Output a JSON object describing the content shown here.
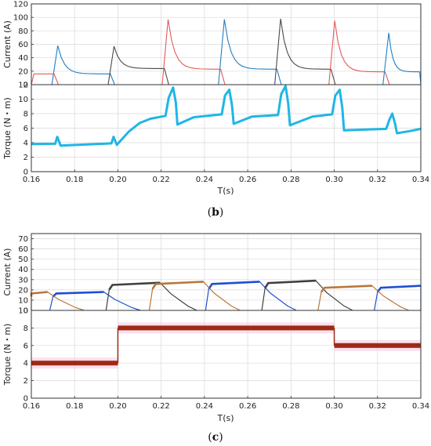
{
  "chart_data": [
    {
      "id": "b",
      "type": "line",
      "caption": "b",
      "xlabel": "T(s)",
      "xlim": [
        0.16,
        0.34
      ],
      "xticks": [
        "0.16",
        "0.18",
        "0.20",
        "0.22",
        "0.24",
        "0.26",
        "0.28",
        "0.30",
        "0.32",
        "0.34"
      ],
      "panels": [
        {
          "ylabel": "Current (A)",
          "ylim": [
            0,
            120
          ],
          "yticks": [
            "0",
            "20",
            "40",
            "60",
            "80",
            "100",
            "120"
          ],
          "grid": true,
          "series": [
            {
              "color": "#1f7fc4",
              "segments": [
                {
                  "x0": 0.171,
                  "x1": 0.197,
                  "peak": 58,
                  "steady": 16
                },
                {
                  "x0": 0.248,
                  "x1": 0.274,
                  "peak": 97,
                  "steady": 23
                },
                {
                  "x0": 0.324,
                  "x1": 0.34,
                  "peak": 77,
                  "steady": 19
                }
              ]
            },
            {
              "color": "#4a4a4a",
              "segments": [
                {
                  "x0": 0.197,
                  "x1": 0.222,
                  "peak": 57,
                  "steady": 24
                },
                {
                  "x0": 0.274,
                  "x1": 0.299,
                  "peak": 98,
                  "steady": 23
                }
              ]
            },
            {
              "color": "#e35a57",
              "segments": [
                {
                  "x0": 0.16,
                  "x1": 0.171,
                  "peak": 16,
                  "steady": 16
                },
                {
                  "x0": 0.222,
                  "x1": 0.248,
                  "peak": 97,
                  "steady": 23
                },
                {
                  "x0": 0.299,
                  "x1": 0.324,
                  "peak": 95,
                  "steady": 19
                }
              ]
            }
          ]
        },
        {
          "ylabel": "Torque (N・m)",
          "ylim": [
            0,
            12
          ],
          "yticks": [
            "0",
            "2",
            "4",
            "6",
            "8",
            "10",
            "12"
          ],
          "grid": true,
          "series": [
            {
              "color": "#1fb6e6",
              "points": [
                [
                  0.16,
                  3.8
                ],
                [
                  0.171,
                  3.85
                ],
                [
                  0.172,
                  4.8
                ],
                [
                  0.1735,
                  3.6
                ],
                [
                  0.19,
                  3.8
                ],
                [
                  0.197,
                  3.9
                ],
                [
                  0.198,
                  4.8
                ],
                [
                  0.1995,
                  3.7
                ],
                [
                  0.205,
                  5.5
                ],
                [
                  0.21,
                  6.7
                ],
                [
                  0.215,
                  7.3
                ],
                [
                  0.222,
                  7.7
                ],
                [
                  0.2235,
                  10.2
                ],
                [
                  0.2255,
                  11.6
                ],
                [
                  0.2268,
                  9.5
                ],
                [
                  0.2275,
                  6.5
                ],
                [
                  0.235,
                  7.5
                ],
                [
                  0.248,
                  7.9
                ],
                [
                  0.2495,
                  10.5
                ],
                [
                  0.2515,
                  11.3
                ],
                [
                  0.2527,
                  9.2
                ],
                [
                  0.2535,
                  6.6
                ],
                [
                  0.262,
                  7.6
                ],
                [
                  0.274,
                  7.8
                ],
                [
                  0.2755,
                  10.7
                ],
                [
                  0.2775,
                  11.8
                ],
                [
                  0.2787,
                  9.5
                ],
                [
                  0.2795,
                  6.4
                ],
                [
                  0.29,
                  7.6
                ],
                [
                  0.299,
                  7.9
                ],
                [
                  0.3005,
                  10.5
                ],
                [
                  0.3025,
                  11.3
                ],
                [
                  0.3037,
                  8.8
                ],
                [
                  0.3045,
                  5.7
                ],
                [
                  0.315,
                  5.8
                ],
                [
                  0.324,
                  5.9
                ],
                [
                  0.3255,
                  7.2
                ],
                [
                  0.3268,
                  8.0
                ],
                [
                  0.3282,
                  6.5
                ],
                [
                  0.329,
                  5.3
                ],
                [
                  0.335,
                  5.6
                ],
                [
                  0.34,
                  5.9
                ]
              ]
            }
          ]
        }
      ]
    },
    {
      "id": "c",
      "type": "line",
      "caption": "c",
      "xlabel": "T(s)",
      "xlim": [
        0.16,
        0.34
      ],
      "xticks": [
        "0.16",
        "0.18",
        "0.20",
        "0.22",
        "0.24",
        "0.26",
        "0.28",
        "0.30",
        "0.32",
        "0.34"
      ],
      "panels": [
        {
          "ylabel": "Current (A)",
          "ylim": [
            0,
            75
          ],
          "yticks": [
            "0",
            "10",
            "20",
            "30",
            "40",
            "50",
            "60",
            "70"
          ],
          "grid": true,
          "series": [
            {
              "color": "#1f4fd1",
              "segments": [
                {
                  "x0": 0.1685,
                  "x1": 0.1945,
                  "level": 18
                },
                {
                  "x0": 0.2405,
                  "x1": 0.2665,
                  "level": 28
                },
                {
                  "x0": 0.3185,
                  "x1": 0.3445,
                  "level": 24
                }
              ]
            },
            {
              "color": "#404040",
              "segments": [
                {
                  "x0": 0.1945,
                  "x1": 0.2205,
                  "level": 27
                },
                {
                  "x0": 0.2665,
                  "x1": 0.2925,
                  "level": 29
                }
              ]
            },
            {
              "color": "#b8763a",
              "segments": [
                {
                  "x0": 0.1425,
                  "x1": 0.1685,
                  "level": 18
                },
                {
                  "x0": 0.2145,
                  "x1": 0.2405,
                  "level": 28
                },
                {
                  "x0": 0.2925,
                  "x1": 0.3185,
                  "level": 24
                }
              ]
            }
          ]
        },
        {
          "ylabel": "Torque (N・m)",
          "ylim": [
            0,
            10
          ],
          "yticks": [
            "0",
            "2",
            "4",
            "6",
            "8",
            "10"
          ],
          "grid": true,
          "series": [
            {
              "color": "#9e2a12",
              "steps": [
                {
                  "x0": 0.16,
                  "x1": 0.2,
                  "value": 4.0
                },
                {
                  "x0": 0.2,
                  "x1": 0.3,
                  "value": 8.0
                },
                {
                  "x0": 0.3,
                  "x1": 0.34,
                  "value": 6.0
                }
              ]
            }
          ]
        }
      ]
    }
  ]
}
